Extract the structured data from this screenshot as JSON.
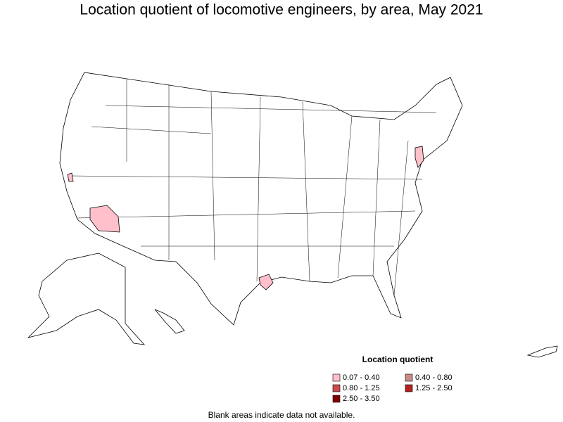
{
  "map": {
    "title": "Location quotient of locomotive engineers, by area, May 2021"
  },
  "legend": {
    "title": "Location quotient",
    "items": [
      {
        "label": "0.07 - 0.40",
        "color": "#ffc0cb"
      },
      {
        "label": "0.40 - 0.80",
        "color": "#c98a8a"
      },
      {
        "label": "0.80 - 1.25",
        "color": "#cc4c4c"
      },
      {
        "label": "1.25 - 2.50",
        "color": "#b22222"
      },
      {
        "label": "2.50 - 3.50",
        "color": "#800000"
      }
    ]
  },
  "footnote": "Blank areas indicate data not available."
}
